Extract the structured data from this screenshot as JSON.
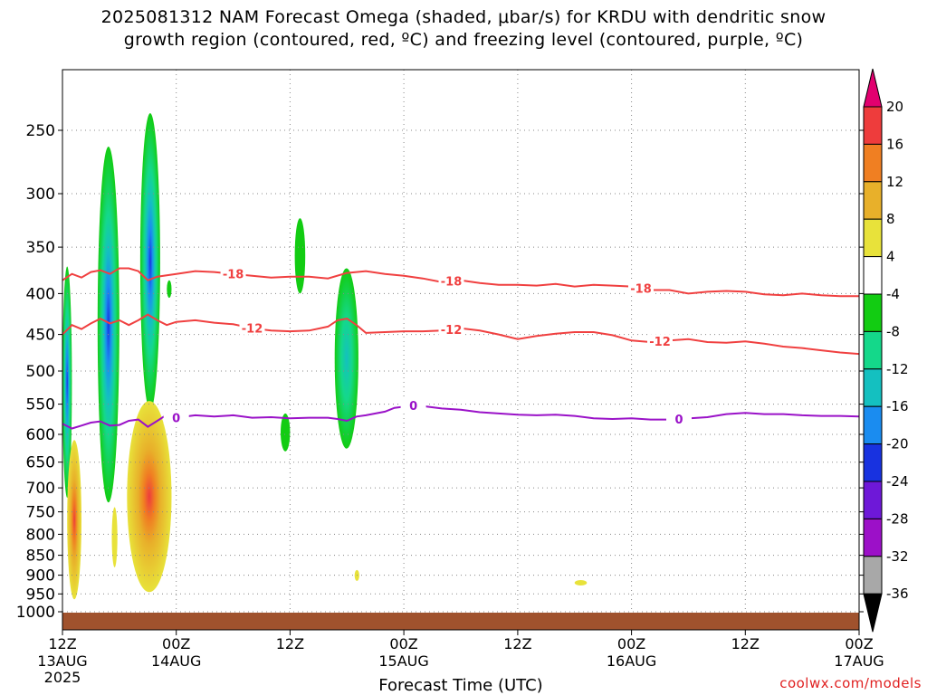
{
  "title_line1": "2025081312 NAM Forecast Omega (shaded, μbar/s) for KRDU with dendritic snow",
  "title_line2": "growth region (contoured, red, ºC) and freezing level (contoured, purple, ºC)",
  "credit": "coolwx.com/models",
  "chart_data": {
    "type": "time-height contour",
    "title": "2025081312 NAM Forecast Omega (shaded, μbar/s) for KRDU with dendritic snow growth region (contoured, red, ºC) and freezing level (contoured, purple, ºC)",
    "xlabel": "Forecast Time (UTC)",
    "ylabel": "",
    "x_unit": "hours since 2025-08-13 12Z",
    "xlim": [
      0,
      84
    ],
    "x_ticks": [
      {
        "x": 0,
        "label": "12Z",
        "sub": [
          "13AUG",
          "2025"
        ]
      },
      {
        "x": 12,
        "label": "00Z",
        "sub": [
          "14AUG"
        ]
      },
      {
        "x": 24,
        "label": "12Z",
        "sub": []
      },
      {
        "x": 36,
        "label": "00Z",
        "sub": [
          "15AUG"
        ]
      },
      {
        "x": 48,
        "label": "12Z",
        "sub": []
      },
      {
        "x": 60,
        "label": "00Z",
        "sub": [
          "16AUG"
        ]
      },
      {
        "x": 72,
        "label": "12Z",
        "sub": []
      },
      {
        "x": 84,
        "label": "00Z",
        "sub": [
          "17AUG"
        ]
      }
    ],
    "y_ticks": [
      250,
      300,
      350,
      400,
      450,
      500,
      550,
      600,
      650,
      700,
      750,
      800,
      850,
      900,
      950,
      1000
    ],
    "ylim_hPa": [
      1020,
      200
    ],
    "y_scale": "log-pressure",
    "grid": true,
    "colorbar": {
      "levels": [
        20,
        16,
        12,
        8,
        4,
        -4,
        -8,
        -12,
        -16,
        -20,
        -24,
        -28,
        -32,
        -36
      ],
      "colors": [
        "#e2006f",
        "#ee3c3c",
        "#f07f22",
        "#e8b02a",
        "#e8e23a",
        "#ffffff",
        "#12cc12",
        "#14d88a",
        "#14c0c0",
        "#1a8cf0",
        "#1832e0",
        "#6e18d8",
        "#9c10c8",
        "#a8a8a8",
        "#000000"
      ]
    },
    "contours": [
      {
        "name": "-18",
        "color": "#f04040",
        "label_x": [
          18,
          41,
          61
        ],
        "points": [
          [
            0,
            385
          ],
          [
            1,
            378
          ],
          [
            2,
            382
          ],
          [
            3,
            376
          ],
          [
            4,
            374
          ],
          [
            5,
            378
          ],
          [
            6,
            372
          ],
          [
            7,
            372
          ],
          [
            8,
            375
          ],
          [
            9,
            385
          ],
          [
            10,
            381
          ],
          [
            12,
            378
          ],
          [
            14,
            375
          ],
          [
            16,
            376
          ],
          [
            18,
            378
          ],
          [
            20,
            380
          ],
          [
            22,
            382
          ],
          [
            24,
            381
          ],
          [
            26,
            381
          ],
          [
            28,
            383
          ],
          [
            30,
            377
          ],
          [
            32,
            375
          ],
          [
            34,
            378
          ],
          [
            36,
            380
          ],
          [
            38,
            383
          ],
          [
            40,
            387
          ],
          [
            42,
            385
          ],
          [
            44,
            388
          ],
          [
            46,
            390
          ],
          [
            48,
            390
          ],
          [
            50,
            391
          ],
          [
            52,
            389
          ],
          [
            54,
            392
          ],
          [
            56,
            390
          ],
          [
            58,
            391
          ],
          [
            60,
            392
          ],
          [
            62,
            396
          ],
          [
            64,
            396
          ],
          [
            66,
            400
          ],
          [
            68,
            398
          ],
          [
            70,
            397
          ],
          [
            72,
            398
          ],
          [
            74,
            401
          ],
          [
            76,
            402
          ],
          [
            78,
            400
          ],
          [
            80,
            402
          ],
          [
            82,
            403
          ],
          [
            84,
            403
          ]
        ]
      },
      {
        "name": "-12",
        "color": "#f04040",
        "label_x": [
          20,
          41,
          63
        ],
        "points": [
          [
            0,
            450
          ],
          [
            1,
            438
          ],
          [
            2,
            443
          ],
          [
            3,
            436
          ],
          [
            4,
            430
          ],
          [
            5,
            436
          ],
          [
            6,
            432
          ],
          [
            7,
            438
          ],
          [
            8,
            432
          ],
          [
            9,
            425
          ],
          [
            10,
            432
          ],
          [
            11,
            438
          ],
          [
            12,
            434
          ],
          [
            14,
            432
          ],
          [
            16,
            435
          ],
          [
            18,
            437
          ],
          [
            20,
            442
          ],
          [
            22,
            445
          ],
          [
            24,
            446
          ],
          [
            26,
            445
          ],
          [
            28,
            440
          ],
          [
            29,
            432
          ],
          [
            30,
            430
          ],
          [
            31,
            438
          ],
          [
            32,
            448
          ],
          [
            34,
            447
          ],
          [
            36,
            446
          ],
          [
            38,
            446
          ],
          [
            40,
            445
          ],
          [
            42,
            442
          ],
          [
            44,
            445
          ],
          [
            46,
            450
          ],
          [
            48,
            456
          ],
          [
            50,
            452
          ],
          [
            52,
            449
          ],
          [
            54,
            447
          ],
          [
            56,
            447
          ],
          [
            58,
            451
          ],
          [
            60,
            458
          ],
          [
            62,
            460
          ],
          [
            64,
            458
          ],
          [
            66,
            456
          ],
          [
            68,
            460
          ],
          [
            70,
            461
          ],
          [
            72,
            459
          ],
          [
            74,
            462
          ],
          [
            76,
            466
          ],
          [
            78,
            468
          ],
          [
            80,
            471
          ],
          [
            82,
            474
          ],
          [
            84,
            476
          ]
        ]
      },
      {
        "name": "0",
        "color": "#9a12c8",
        "label_x": [
          12,
          37,
          65
        ],
        "points": [
          [
            0,
            582
          ],
          [
            1,
            590
          ],
          [
            2,
            585
          ],
          [
            3,
            580
          ],
          [
            4,
            578
          ],
          [
            5,
            585
          ],
          [
            6,
            584
          ],
          [
            7,
            577
          ],
          [
            8,
            575
          ],
          [
            9,
            587
          ],
          [
            10,
            577
          ],
          [
            11,
            567
          ],
          [
            12,
            572
          ],
          [
            14,
            568
          ],
          [
            16,
            570
          ],
          [
            18,
            568
          ],
          [
            20,
            572
          ],
          [
            22,
            571
          ],
          [
            24,
            573
          ],
          [
            26,
            572
          ],
          [
            28,
            572
          ],
          [
            29,
            574
          ],
          [
            30,
            577
          ],
          [
            31,
            570
          ],
          [
            32,
            568
          ],
          [
            34,
            562
          ],
          [
            35,
            556
          ],
          [
            36,
            554
          ],
          [
            37,
            552
          ],
          [
            38,
            553
          ],
          [
            40,
            557
          ],
          [
            42,
            559
          ],
          [
            44,
            563
          ],
          [
            46,
            565
          ],
          [
            48,
            567
          ],
          [
            50,
            568
          ],
          [
            52,
            567
          ],
          [
            54,
            569
          ],
          [
            56,
            573
          ],
          [
            58,
            574
          ],
          [
            60,
            573
          ],
          [
            62,
            575
          ],
          [
            64,
            575
          ],
          [
            66,
            573
          ],
          [
            68,
            571
          ],
          [
            70,
            566
          ],
          [
            72,
            564
          ],
          [
            74,
            566
          ],
          [
            76,
            566
          ],
          [
            78,
            568
          ],
          [
            80,
            569
          ],
          [
            82,
            569
          ],
          [
            84,
            570
          ]
        ]
      }
    ],
    "omega_cells": [
      {
        "type": "ascent",
        "x": 0.3,
        "x_range": [
          0,
          1.0
        ],
        "p_range": [
          370,
          720
        ],
        "min": -24
      },
      {
        "type": "ascent",
        "x": 5.0,
        "x_range": [
          3.7,
          6.0
        ],
        "p_range": [
          262,
          730
        ],
        "min": -16
      },
      {
        "type": "ascent",
        "x": 9.0,
        "x_range": [
          8.2,
          10.3
        ],
        "p_range": [
          238,
          560
        ],
        "min": -24
      },
      {
        "type": "ascent",
        "x": 11.2,
        "x_range": [
          11.0,
          11.5
        ],
        "p_range": [
          385,
          405
        ],
        "min": -8
      },
      {
        "type": "ascent",
        "x": 25.0,
        "x_range": [
          24.5,
          25.6
        ],
        "p_range": [
          322,
          400
        ],
        "min": -8
      },
      {
        "type": "ascent",
        "x": 29.8,
        "x_range": [
          28.7,
          31.2
        ],
        "p_range": [
          372,
          625
        ],
        "min": -8
      },
      {
        "type": "ascent",
        "x": 23.5,
        "x_range": [
          23.0,
          24.0
        ],
        "p_range": [
          565,
          630
        ],
        "min": -8
      },
      {
        "type": "descent",
        "x": 1.2,
        "x_range": [
          0.5,
          2.0
        ],
        "p_range": [
          610,
          965
        ],
        "max": 20
      },
      {
        "type": "descent",
        "x": 9.0,
        "x_range": [
          6.8,
          11.5
        ],
        "p_range": [
          545,
          945
        ],
        "max": 20
      },
      {
        "type": "descent",
        "x": 5.5,
        "x_range": [
          5.2,
          5.8
        ],
        "p_range": [
          740,
          880
        ],
        "max": 4
      },
      {
        "type": "descent",
        "x": 31.0,
        "x_range": [
          30.8,
          31.3
        ],
        "p_range": [
          887,
          915
        ],
        "max": 4
      },
      {
        "type": "descent",
        "x": 54.5,
        "x_range": [
          54.0,
          55.3
        ],
        "p_range": [
          915,
          925
        ],
        "max": 4
      }
    ]
  }
}
